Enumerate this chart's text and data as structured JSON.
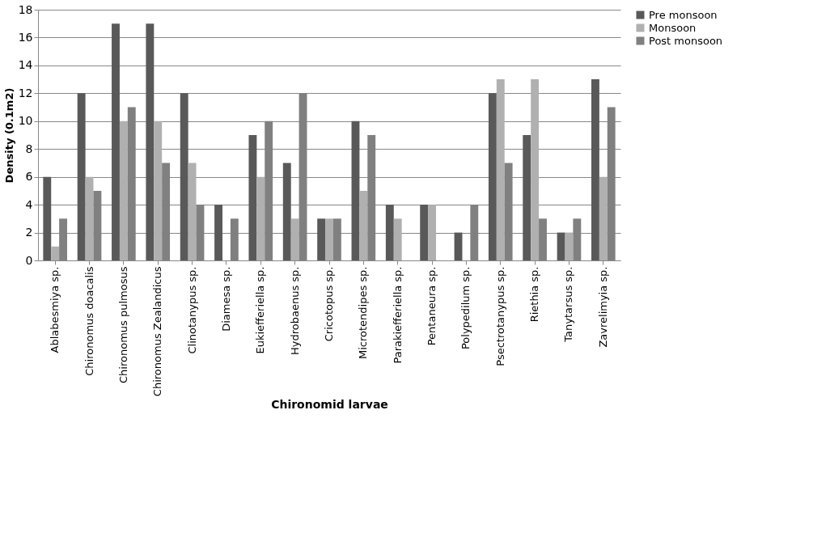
{
  "chart_data": {
    "type": "bar",
    "xlabel": "Chironomid larvae",
    "ylabel": "Density (0.1m2)",
    "categories": [
      "Ablabesmiya  sp.",
      "Chironomus doacalis",
      "Chironomus pulmosus",
      "Chironomus Zealandicus",
      "Clinotanypus sp.",
      "Diamesa sp.",
      "Eukiefferiella  sp.",
      "Hydrobaenus sp.",
      "Cricotopus sp.",
      "Microtendipes sp.",
      "Parakiefferiella sp.",
      "Pentaneura sp.",
      "Polypedilum  sp.",
      "Psectrotanypus sp.",
      "Riethia sp.",
      "Tanytarsus sp.",
      "Zavrelimyia  sp."
    ],
    "series": [
      {
        "name": "Pre monsoon",
        "color": "#595959",
        "values": [
          6,
          12,
          17,
          17,
          12,
          4,
          9,
          7,
          3,
          10,
          4,
          4,
          2,
          12,
          9,
          2,
          13
        ]
      },
      {
        "name": "Monsoon",
        "color": "#b0b0b0",
        "values": [
          1,
          6,
          10,
          10,
          7,
          0,
          6,
          3,
          3,
          5,
          3,
          4,
          0,
          13,
          13,
          2,
          6
        ]
      },
      {
        "name": "Post monsoon",
        "color": "#808080",
        "values": [
          3,
          5,
          11,
          7,
          4,
          3,
          10,
          12,
          3,
          9,
          0,
          0,
          4,
          7,
          3,
          3,
          11
        ]
      }
    ],
    "ylim": [
      0,
      18
    ],
    "yticks": [
      0,
      2,
      4,
      6,
      8,
      10,
      12,
      14,
      16,
      18
    ],
    "grid": "y",
    "legend": "right"
  }
}
